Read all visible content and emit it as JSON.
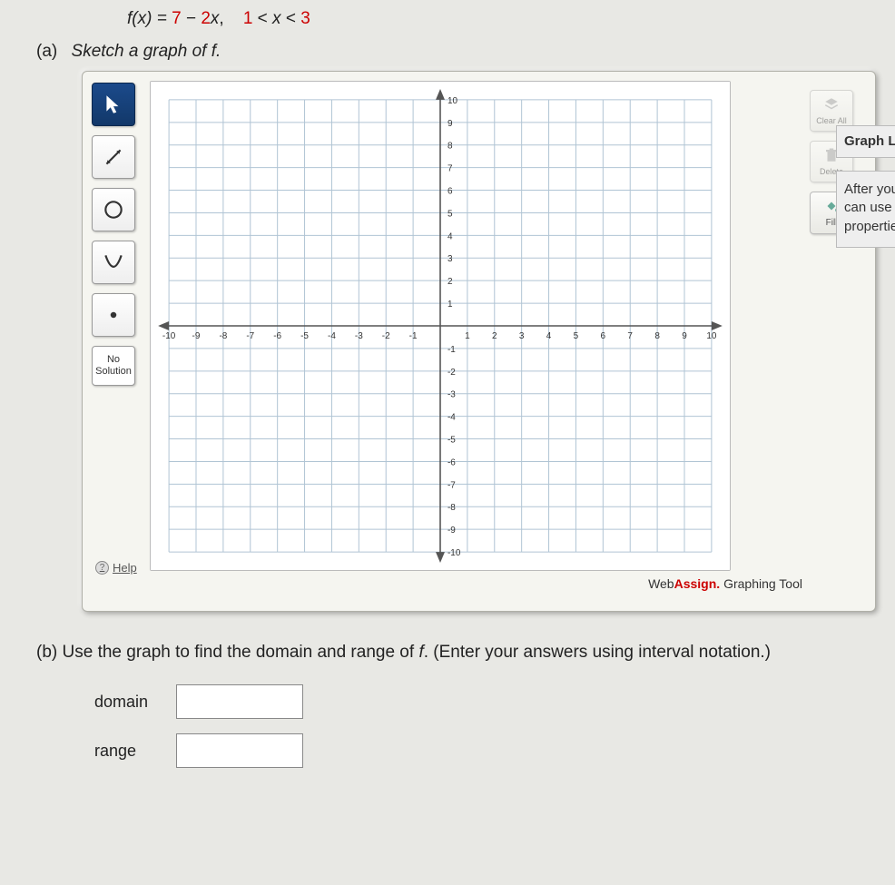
{
  "formula": {
    "lhs": "f(x) = ",
    "expr_a": "7",
    "minus": " − ",
    "expr_b": "2",
    "var": "x",
    "comma": ",",
    "cond_a": "1",
    "lt1": " < ",
    "condvar": "x",
    "lt2": " < ",
    "cond_b": "3"
  },
  "part_a": {
    "paren": "(a)",
    "text": "Sketch a graph of f."
  },
  "tools": {
    "select": "select",
    "line": "line",
    "circle": "circle",
    "parabola": "parabola",
    "point": "point",
    "nosolution_l1": "No",
    "nosolution_l2": "Solution"
  },
  "right_tools": {
    "clear": "Clear All",
    "delete": "Delete",
    "fill": "Fill"
  },
  "grid": {
    "xmin": -10,
    "xmax": 10,
    "ymin": -10,
    "ymax": 10,
    "xtick_step": 1,
    "ytick_step": 1,
    "grid_color": "#b0c4d4",
    "axis_color": "#555",
    "label_color": "#333",
    "background": "#ffffff",
    "tick_fontsize": 10,
    "x_labels": [
      "-10",
      "-9",
      "-8",
      "-7",
      "-6",
      "-5",
      "-4",
      "-3",
      "-2",
      "-1",
      "1",
      "2",
      "3",
      "4",
      "5",
      "6",
      "7",
      "8",
      "9",
      "10"
    ],
    "y_labels": [
      "10",
      "9",
      "8",
      "7",
      "6",
      "5",
      "4",
      "3",
      "2",
      "1",
      "-1",
      "-2",
      "-3",
      "-4",
      "-5",
      "-6",
      "-7",
      "-8",
      "-9",
      "-10"
    ]
  },
  "branding": {
    "web": "Web",
    "assign": "Assign.",
    "rest": " Graphing Tool"
  },
  "help": "Help",
  "side_head": "Graph Layer",
  "side_body_l1": "After you ad",
  "side_body_l2": "can use Gra",
  "side_body_l3": "properties.",
  "part_b": {
    "paren": "(b) ",
    "text": "Use the graph to find the domain and range of f. (Enter your answers using interval notation.)",
    "domain_label": "domain",
    "range_label": "range",
    "domain_value": "",
    "range_value": ""
  }
}
